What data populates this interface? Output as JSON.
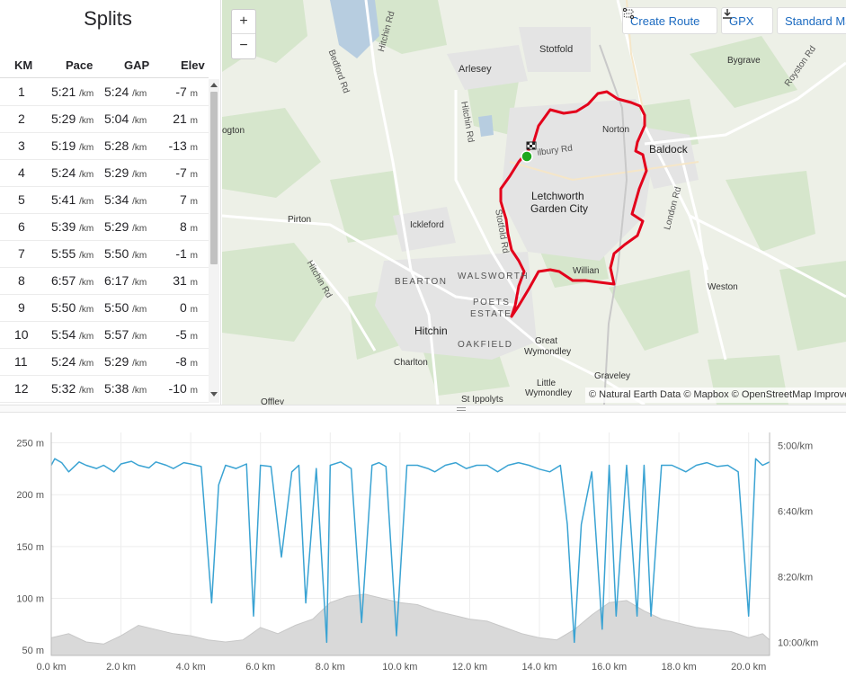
{
  "splits": {
    "title": "Splits",
    "columns": {
      "km": "KM",
      "pace": "Pace",
      "gap": "GAP",
      "elev": "Elev"
    },
    "rows": [
      {
        "km": "1",
        "pace": "5:21",
        "gap": "5:24",
        "elev": "-7"
      },
      {
        "km": "2",
        "pace": "5:29",
        "gap": "5:04",
        "elev": "21"
      },
      {
        "km": "3",
        "pace": "5:19",
        "gap": "5:28",
        "elev": "-13"
      },
      {
        "km": "4",
        "pace": "5:24",
        "gap": "5:29",
        "elev": "-7"
      },
      {
        "km": "5",
        "pace": "5:41",
        "gap": "5:34",
        "elev": "7"
      },
      {
        "km": "6",
        "pace": "5:39",
        "gap": "5:29",
        "elev": "8"
      },
      {
        "km": "7",
        "pace": "5:55",
        "gap": "5:50",
        "elev": "-1"
      },
      {
        "km": "8",
        "pace": "6:57",
        "gap": "6:17",
        "elev": "31"
      },
      {
        "km": "9",
        "pace": "5:50",
        "gap": "5:50",
        "elev": "0"
      },
      {
        "km": "10",
        "pace": "5:54",
        "gap": "5:57",
        "elev": "-5"
      },
      {
        "km": "11",
        "pace": "5:24",
        "gap": "5:29",
        "elev": "-8"
      },
      {
        "km": "12",
        "pace": "5:32",
        "gap": "5:38",
        "elev": "-10"
      }
    ],
    "pace_unit": "/km",
    "elev_unit": "m"
  },
  "map": {
    "zoom_in_label": "+",
    "zoom_out_label": "−",
    "create_route_label": "Create Route",
    "gpx_label": "GPX",
    "standard_label": "Standard Map",
    "attribution": "© Natural Earth Data © Mapbox © OpenStreetMap Improve this map",
    "route_color": "#e3001b",
    "labels": {
      "stotfold": "Stotfold",
      "arlesey": "Arlesey",
      "bygrave": "Bygrave",
      "norton": "Norton",
      "baldock": "Baldock",
      "letchworth1": "Letchworth",
      "letchworth2": "Garden City",
      "ickleford": "Ickleford",
      "pirton": "Pirton",
      "willian": "Willian",
      "weston": "Weston",
      "walsworth": "WALSWORTH",
      "bearton": "BEARTON",
      "poets1": "POETS",
      "poets2": "ESTATE",
      "oakfield": "OAKFIELD",
      "hitchin": "Hitchin",
      "great1": "Great",
      "great2": "Wymondley",
      "charlton": "Charlton",
      "little1": "Little",
      "little2": "Wymondley",
      "graveley": "Graveley",
      "stippolyts": "St Ippolyts",
      "offley": "Offley",
      "ogton": "ogton",
      "road_bedford": "Bedford Rd",
      "road_hitchin_top": "Hitchin Rd",
      "road_hitchin_mid": "Hitchin Rd",
      "road_hitchin_left": "Hitchin Rd",
      "road_stotfold": "Stotfold Rd",
      "road_london": "London Rd",
      "road_royston": "Royston Rd",
      "road_wilbury": "ilbury Rd"
    }
  },
  "chart_data": {
    "type": "line",
    "x_unit": "km",
    "x_ticks": [
      "0.0 km",
      "2.0 km",
      "4.0 km",
      "6.0 km",
      "8.0 km",
      "10.0 km",
      "12.0 km",
      "14.0 km",
      "16.0 km",
      "18.0 km",
      "20.0 km"
    ],
    "y_left_ticks": [
      "250 m",
      "200 m",
      "150 m",
      "100 m",
      "50 m"
    ],
    "y_right_ticks": [
      "5:00/km",
      "6:40/km",
      "8:20/km",
      "10:00/km"
    ],
    "xlim": [
      0,
      20.6
    ],
    "ylim_elevation": [
      45,
      260
    ],
    "ylim_pace_seconds_per_km": [
      280,
      620
    ],
    "elevation_color": "#d9d9d9",
    "pace_color": "#3aa3d3",
    "series": [
      {
        "x": [
          0.0,
          0.5,
          1.0,
          1.5,
          2.0,
          2.5,
          3.0,
          3.5,
          4.0,
          4.5,
          5.0,
          5.5,
          6.0,
          6.5,
          7.0,
          7.5,
          8.0,
          8.5,
          9.0,
          9.5,
          10.0,
          10.5,
          11.0,
          11.5,
          12.0,
          12.5,
          13.0,
          13.5,
          14.0,
          14.5,
          15.0,
          15.5,
          16.0,
          16.5,
          17.0,
          17.5,
          18.0,
          18.5,
          19.0,
          19.5,
          20.0,
          20.4,
          20.6
        ],
        "values": [
          62,
          66,
          58,
          56,
          64,
          74,
          70,
          66,
          64,
          60,
          58,
          60,
          72,
          66,
          74,
          80,
          96,
          102,
          104,
          100,
          96,
          94,
          88,
          84,
          80,
          78,
          72,
          66,
          62,
          60,
          70,
          84,
          96,
          98,
          88,
          80,
          76,
          72,
          70,
          68,
          62,
          66,
          60
        ]
      },
      {
        "x": [
          0.0,
          0.1,
          0.3,
          0.5,
          0.8,
          1.0,
          1.3,
          1.5,
          1.8,
          2.0,
          2.3,
          2.5,
          2.8,
          3.0,
          3.3,
          3.5,
          3.8,
          4.0,
          4.3,
          4.6,
          4.8,
          5.0,
          5.3,
          5.6,
          5.8,
          6.0,
          6.3,
          6.6,
          6.9,
          7.1,
          7.3,
          7.6,
          7.9,
          8.0,
          8.3,
          8.6,
          8.9,
          9.2,
          9.4,
          9.6,
          9.9,
          10.2,
          10.5,
          10.8,
          11.0,
          11.3,
          11.6,
          11.9,
          12.2,
          12.5,
          12.8,
          13.1,
          13.4,
          13.7,
          14.0,
          14.3,
          14.6,
          14.8,
          15.0,
          15.2,
          15.5,
          15.8,
          16.0,
          16.2,
          16.5,
          16.8,
          17.0,
          17.2,
          17.5,
          17.8,
          18.0,
          18.2,
          18.5,
          18.8,
          19.1,
          19.4,
          19.7,
          20.0,
          20.2,
          20.4,
          20.6
        ],
        "values": [
          330,
          320,
          326,
          340,
          325,
          330,
          335,
          330,
          340,
          328,
          324,
          330,
          334,
          325,
          330,
          335,
          326,
          328,
          332,
          540,
          360,
          330,
          335,
          328,
          560,
          330,
          332,
          470,
          340,
          330,
          540,
          335,
          600,
          330,
          325,
          335,
          570,
          330,
          326,
          332,
          590,
          330,
          330,
          335,
          340,
          330,
          326,
          335,
          330,
          330,
          340,
          330,
          326,
          330,
          336,
          340,
          330,
          420,
          600,
          420,
          340,
          580,
          330,
          560,
          330,
          560,
          330,
          560,
          330,
          330,
          335,
          340,
          330,
          326,
          332,
          330,
          340,
          560,
          320,
          330,
          325
        ]
      }
    ]
  }
}
